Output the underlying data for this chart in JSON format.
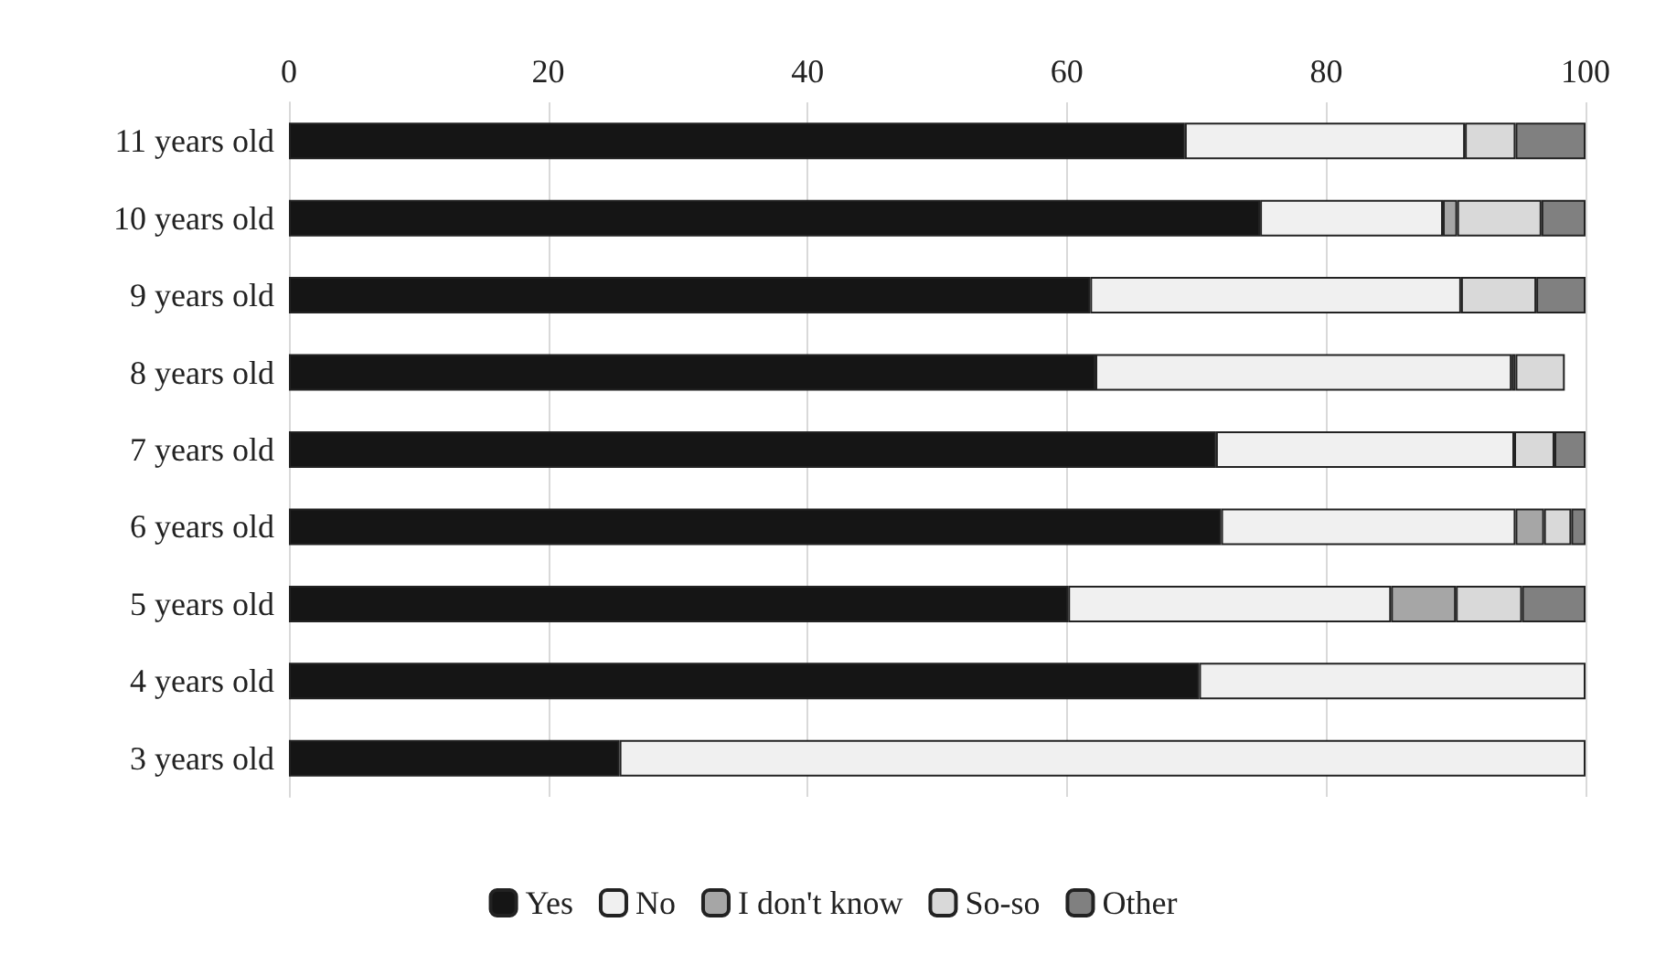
{
  "chart_data": {
    "type": "bar",
    "orientation": "horizontal",
    "stacked": true,
    "categories": [
      "11 years old",
      "10 years old",
      "9 years old",
      "8 years old",
      "7 years old",
      "6 years old",
      "5 years old",
      "4 years old",
      "3 years old"
    ],
    "series": [
      {
        "name": "Yes",
        "color": "#151515",
        "values": [
          69.1,
          74.9,
          61.8,
          62.2,
          71.5,
          71.9,
          60.1,
          70.2,
          25.5
        ]
      },
      {
        "name": "No",
        "color": "#f0f0f0",
        "values": [
          21.6,
          14.1,
          28.6,
          32.1,
          23,
          22.7,
          24.9,
          29.8,
          74.5
        ]
      },
      {
        "name": "I don't know",
        "color": "#a6a6a6",
        "values": [
          null,
          1.1,
          null,
          0.3,
          null,
          2.2,
          5,
          null,
          null
        ]
      },
      {
        "name": "So-so",
        "color": "#d9d9d9",
        "values": [
          3.9,
          6.5,
          5.8,
          3.8,
          3.1,
          2.1,
          5.1,
          null,
          null
        ]
      },
      {
        "name": "Other",
        "color": "#808080",
        "values": [
          5.4,
          3.4,
          3.8,
          null,
          2.4,
          1.1,
          4.9,
          null,
          null
        ]
      }
    ],
    "xlim": [
      0,
      100
    ],
    "xticks": [
      0,
      20,
      40,
      60,
      80,
      100
    ],
    "grid": "x",
    "legend": "bottom"
  }
}
